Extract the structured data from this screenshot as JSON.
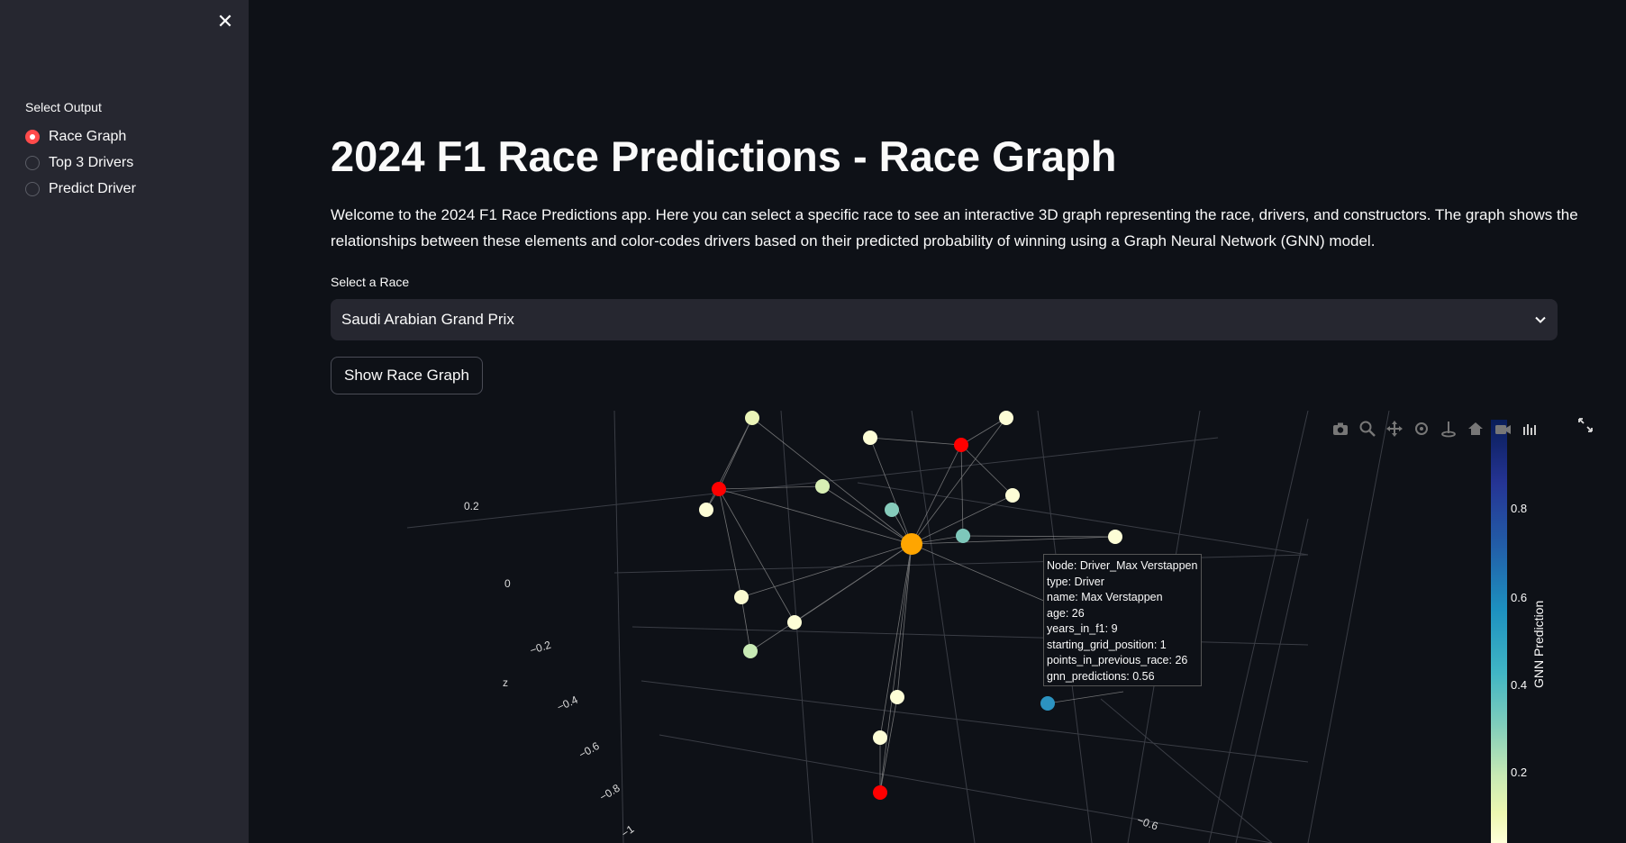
{
  "sidebar": {
    "close_icon": "close-icon",
    "radio_title": "Select Output",
    "options": [
      {
        "label": "Race Graph",
        "selected": true
      },
      {
        "label": "Top 3 Drivers",
        "selected": false
      },
      {
        "label": "Predict Driver",
        "selected": false
      }
    ]
  },
  "main": {
    "title": "2024 F1 Race Predictions - Race Graph",
    "intro": "Welcome to the 2024 F1 Race Predictions app. Here you can select a specific race to see an interactive 3D graph representing the race, drivers, and constructors. The graph shows the relationships between these elements and color-codes drivers based on their predicted probability of winning using a Graph Neural Network (GNN) model.",
    "select_label": "Select a Race",
    "select_value": "Saudi Arabian Grand Prix",
    "button_label": "Show Race Graph"
  },
  "graph": {
    "z_axis_title": "z",
    "z_ticks": [
      "0.2",
      "0",
      "−0.2",
      "−0.4",
      "−0.6",
      "−0.8",
      "−1"
    ],
    "x_ticks": [
      "−0.6"
    ],
    "colorbar": {
      "title": "GNN Prediction",
      "ticks": [
        "0.8",
        "0.6",
        "0.4",
        "0.2"
      ]
    },
    "tooltip": [
      "Node: Driver_Max Verstappen",
      "type: Driver",
      "name: Max Verstappen",
      "age: 26",
      "years_in_f1: 9",
      "starting_grid_position: 1",
      "points_in_previous_race: 26",
      "gnn_predictions: 0.56"
    ],
    "modebar_icons": [
      "camera-icon",
      "zoom-icon",
      "pan-icon",
      "orbit-icon",
      "turntable-icon",
      "home-icon",
      "camera-view-icon",
      "toggle-hover-icon"
    ],
    "colors": {
      "race_node": "#ffa500",
      "constructor_node": "#ff0000",
      "edge": "#9a9a9a"
    }
  }
}
